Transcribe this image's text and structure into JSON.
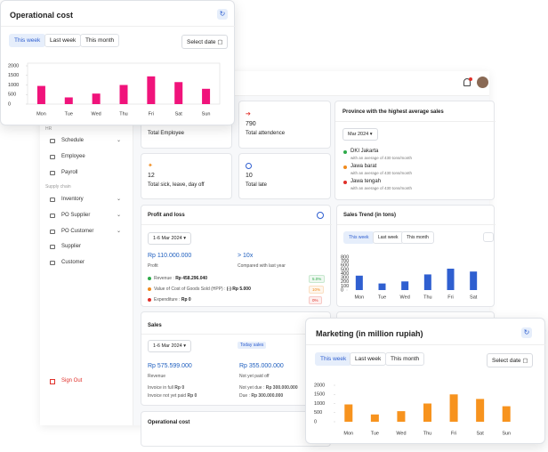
{
  "operational_cost_popup": {
    "title": "Operational cost",
    "tabs": [
      "This week",
      "Last week",
      "This month"
    ],
    "select_date": "Select date",
    "chart_data": {
      "type": "bar",
      "categories": [
        "Mon",
        "Tue",
        "Wed",
        "Thu",
        "Fri",
        "Sat",
        "Sun"
      ],
      "values": [
        950,
        350,
        550,
        1000,
        1450,
        1150,
        800
      ],
      "color": "#f0137b",
      "ylim": [
        0,
        2000
      ],
      "yticks": [
        2000,
        1500,
        1000,
        500,
        0
      ]
    }
  },
  "sidebar": {
    "hr_label": "HR",
    "hr_items": [
      "Schedule",
      "Employee",
      "Payroll"
    ],
    "supply_label": "Supply chain",
    "supply_items": [
      "Inventory",
      "PO Supplier",
      "PO Customer",
      "Supplier",
      "Customer"
    ],
    "sign_out": "Sign Out"
  },
  "stats": [
    {
      "label": "Total Employee"
    },
    {
      "value": 790,
      "label": "Total attendence"
    },
    {
      "value": 12,
      "label": "Total sick, leave, day off"
    },
    {
      "value": 10,
      "label": "Total late"
    }
  ],
  "province": {
    "title": "Province with the highest average sales",
    "period": "Mar 2024",
    "items": [
      {
        "name": "DKI Jakarta",
        "note": "with an average of 430 tons/month",
        "color": "#2eaa4a"
      },
      {
        "name": "Jawa barat",
        "note": "with an average of 430 tons/month",
        "color": "#f08a1c"
      },
      {
        "name": "Jawa tengah",
        "note": "with an average of 430 tons/month",
        "color": "#e0302a"
      }
    ]
  },
  "profit_loss": {
    "title": "Profit and loss",
    "period": "1-6 Mar 2024",
    "profit_value": "Rp 110.000.000",
    "profit_label": "Profit",
    "compare_value": "> 10x",
    "compare_label": "Compared with last year",
    "rows": [
      {
        "label": "Revenue :",
        "amount": "Rp 458.296.040",
        "badge": "5.0%",
        "color": "#2eaa4a"
      },
      {
        "label": "Value of Cost of Goods Sold (HPP) :",
        "amount": "(-) Rp 5.000",
        "badge": "10%",
        "color": "#f08a1c"
      },
      {
        "label": "Expenditure :",
        "amount": "Rp 0",
        "badge": "0%",
        "color": "#e0302a"
      }
    ]
  },
  "sales_trend": {
    "title": "Sales Trend (in tons)",
    "tabs": [
      "This week",
      "Last week",
      "This month"
    ],
    "chart_data": {
      "type": "bar",
      "categories": [
        "Mon",
        "Tue",
        "Wed",
        "Thu",
        "Fri",
        "Sat"
      ],
      "values": [
        350,
        160,
        210,
        380,
        520,
        450
      ],
      "color": "#2f5fd0",
      "ylim": [
        0,
        800
      ],
      "yticks": [
        800,
        700,
        600,
        500,
        400,
        300,
        200,
        100,
        0
      ]
    }
  },
  "sales": {
    "title": "Sales",
    "period": "1-6 Mar 2024",
    "badge": "Today sales",
    "revenue_value": "Rp 575.599.000",
    "revenue_label": "Revenue",
    "invoice_full_label": "Invoice in full",
    "invoice_full_value": "Rp 0",
    "invoice_unpaid_label": "Invoice not yet paid",
    "invoice_unpaid_value": "Rp 0",
    "unpaid_value": "Rp 355.000.000",
    "unpaid_label": "Not yet paid off",
    "not_due_label": "Not yet due :",
    "not_due_value": "Rp 300.000.000",
    "due_label": "Due :",
    "due_value": "Rp 300.000.000"
  },
  "operational_cost_card": {
    "title": "Operational cost"
  },
  "marketing_popup": {
    "title": "Marketing (in million rupiah)",
    "tabs": [
      "This week",
      "Last week",
      "This month"
    ],
    "select_date": "Select date",
    "chart_data": {
      "type": "bar",
      "categories": [
        "Mon",
        "Tue",
        "Wed",
        "Thu",
        "Fri",
        "Sat",
        "Sun"
      ],
      "values": [
        950,
        400,
        580,
        1000,
        1500,
        1250,
        850
      ],
      "color": "#f7931e",
      "ylim": [
        0,
        2000
      ],
      "yticks": [
        2000,
        1500,
        1000,
        500,
        0
      ]
    }
  }
}
